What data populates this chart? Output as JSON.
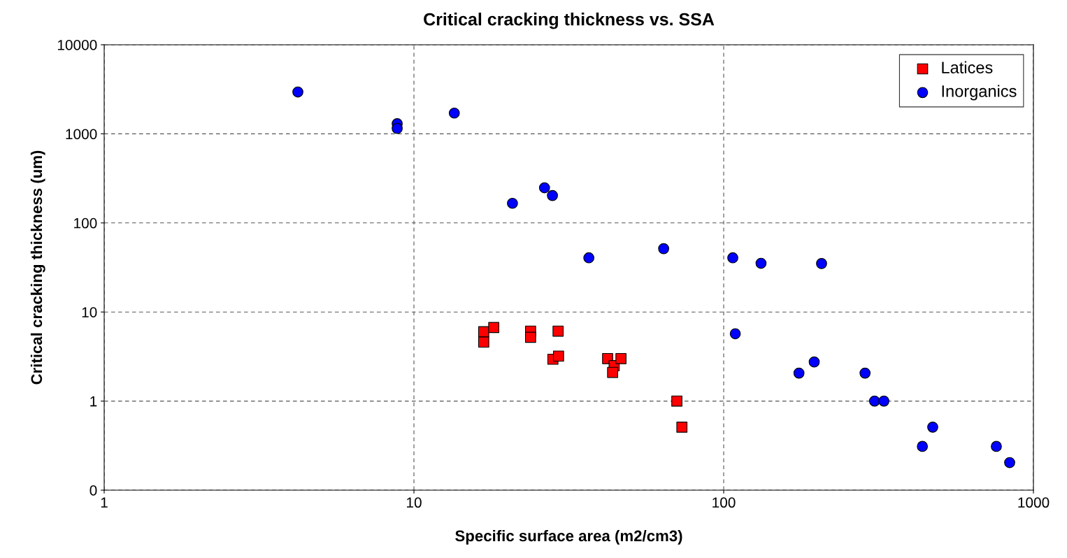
{
  "chart_data": {
    "type": "scatter",
    "title": "Critical cracking thickness vs. SSA",
    "xlabel": "Specific surface area (m2/cm3)",
    "ylabel": "Critical cracking thickness (um)",
    "log": "xy",
    "xlim": [
      1,
      1000
    ],
    "xticks": [
      1,
      10,
      100,
      1000
    ],
    "ylim": [
      0.1,
      10000
    ],
    "yticks": [
      {
        "value": 0.1,
        "label": "0"
      },
      1,
      10,
      100,
      1000,
      10000
    ],
    "grid": true,
    "legend": "top right",
    "series": [
      {
        "name": "Latices",
        "color": "#ff0000",
        "marker": "square",
        "x": [
          16.8,
          16.8,
          18.1,
          23.8,
          23.8,
          29.2,
          28.1,
          29.3,
          42.2,
          44.3,
          43.8,
          46.6,
          70.6,
          73.3
        ],
        "values": [
          6.0,
          4.6,
          6.7,
          6.1,
          5.2,
          6.1,
          2.95,
          3.2,
          3.0,
          2.5,
          2.1,
          3.0,
          1.0,
          0.51
        ]
      },
      {
        "name": "Inorganics",
        "color": "#0000ff",
        "marker": "circle",
        "x": [
          4.22,
          8.83,
          8.83,
          13.5,
          26.4,
          28.0,
          20.8,
          36.7,
          64.0,
          107,
          132,
          207,
          109,
          175,
          196,
          286,
          307,
          329,
          438,
          473,
          759,
          838
        ],
        "values": [
          2950,
          1300,
          1150,
          1710,
          248,
          203,
          166,
          40.6,
          51.4,
          40.6,
          35.2,
          35,
          5.7,
          2.06,
          2.75,
          2.06,
          1.0,
          1.0,
          0.31,
          0.51,
          0.31,
          0.204
        ]
      }
    ]
  }
}
